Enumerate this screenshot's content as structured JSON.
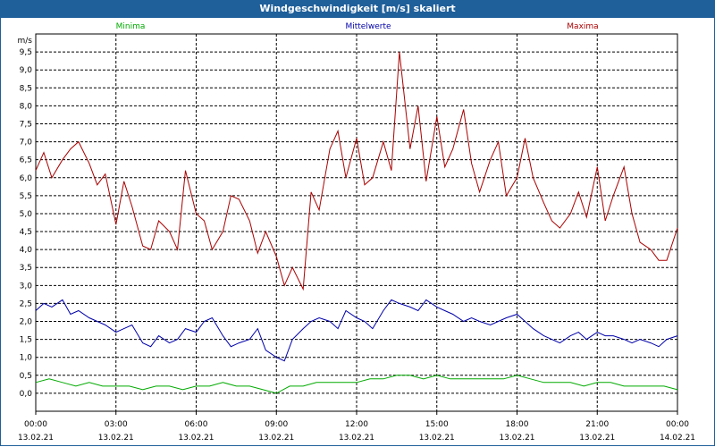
{
  "window_title": "Windgeschwindigkeit [m/s] skaliert",
  "chart_data": {
    "type": "line",
    "title": "Windgeschwindigkeit [m/s] skaliert",
    "ylabel": "m/s",
    "ylim": [
      -0.5,
      10.0
    ],
    "yticks": [
      "0,0",
      "0,5",
      "1,0",
      "1,5",
      "2,0",
      "2,5",
      "3,0",
      "3,5",
      "4,0",
      "4,5",
      "5,0",
      "5,5",
      "6,0",
      "6,5",
      "7,0",
      "7,5",
      "8,0",
      "8,5",
      "9,0",
      "9,5"
    ],
    "x_ticks": [
      {
        "time": "00:00",
        "date": "13.02.21"
      },
      {
        "time": "03:00",
        "date": "13.02.21"
      },
      {
        "time": "06:00",
        "date": "13.02.21"
      },
      {
        "time": "09:00",
        "date": "13.02.21"
      },
      {
        "time": "12:00",
        "date": "13.02.21"
      },
      {
        "time": "15:00",
        "date": "13.02.21"
      },
      {
        "time": "18:00",
        "date": "13.02.21"
      },
      {
        "time": "21:00",
        "date": "13.02.21"
      },
      {
        "time": "00:00",
        "date": "14.02.21"
      }
    ],
    "x_hours": [
      0,
      24
    ],
    "grid": true,
    "series": [
      {
        "name": "Minima",
        "color": "#00aa00",
        "points": [
          [
            0,
            0.3
          ],
          [
            0.5,
            0.4
          ],
          [
            1,
            0.3
          ],
          [
            1.5,
            0.2
          ],
          [
            2,
            0.3
          ],
          [
            2.5,
            0.2
          ],
          [
            3,
            0.2
          ],
          [
            3.5,
            0.2
          ],
          [
            4,
            0.1
          ],
          [
            4.5,
            0.2
          ],
          [
            5,
            0.2
          ],
          [
            5.5,
            0.1
          ],
          [
            6,
            0.2
          ],
          [
            6.5,
            0.2
          ],
          [
            7,
            0.3
          ],
          [
            7.5,
            0.2
          ],
          [
            8,
            0.2
          ],
          [
            8.5,
            0.1
          ],
          [
            9,
            0.0
          ],
          [
            9.5,
            0.2
          ],
          [
            10,
            0.2
          ],
          [
            10.5,
            0.3
          ],
          [
            11,
            0.3
          ],
          [
            11.5,
            0.3
          ],
          [
            12,
            0.3
          ],
          [
            12.5,
            0.4
          ],
          [
            13,
            0.4
          ],
          [
            13.5,
            0.5
          ],
          [
            14,
            0.5
          ],
          [
            14.5,
            0.4
          ],
          [
            15,
            0.5
          ],
          [
            15.5,
            0.4
          ],
          [
            16,
            0.4
          ],
          [
            16.5,
            0.4
          ],
          [
            17,
            0.4
          ],
          [
            17.5,
            0.4
          ],
          [
            18,
            0.5
          ],
          [
            18.5,
            0.4
          ],
          [
            19,
            0.3
          ],
          [
            19.5,
            0.3
          ],
          [
            20,
            0.3
          ],
          [
            20.5,
            0.2
          ],
          [
            21,
            0.3
          ],
          [
            21.5,
            0.3
          ],
          [
            22,
            0.2
          ],
          [
            22.5,
            0.2
          ],
          [
            23,
            0.2
          ],
          [
            23.5,
            0.2
          ],
          [
            24,
            0.1
          ]
        ]
      },
      {
        "name": "Mittelwerte",
        "color": "#0000aa",
        "points": [
          [
            0,
            2.3
          ],
          [
            0.3,
            2.5
          ],
          [
            0.6,
            2.4
          ],
          [
            1,
            2.6
          ],
          [
            1.3,
            2.2
          ],
          [
            1.6,
            2.3
          ],
          [
            2,
            2.1
          ],
          [
            2.3,
            2.0
          ],
          [
            2.6,
            1.9
          ],
          [
            3,
            1.7
          ],
          [
            3.3,
            1.8
          ],
          [
            3.6,
            1.9
          ],
          [
            4,
            1.4
          ],
          [
            4.3,
            1.3
          ],
          [
            4.6,
            1.6
          ],
          [
            5,
            1.4
          ],
          [
            5.3,
            1.5
          ],
          [
            5.6,
            1.8
          ],
          [
            6,
            1.7
          ],
          [
            6.3,
            2.0
          ],
          [
            6.6,
            2.1
          ],
          [
            7,
            1.6
          ],
          [
            7.3,
            1.3
          ],
          [
            7.6,
            1.4
          ],
          [
            8,
            1.5
          ],
          [
            8.3,
            1.8
          ],
          [
            8.6,
            1.2
          ],
          [
            9,
            1.0
          ],
          [
            9.3,
            0.9
          ],
          [
            9.6,
            1.5
          ],
          [
            10,
            1.8
          ],
          [
            10.3,
            2.0
          ],
          [
            10.6,
            2.1
          ],
          [
            11,
            2.0
          ],
          [
            11.3,
            1.8
          ],
          [
            11.6,
            2.3
          ],
          [
            12,
            2.1
          ],
          [
            12.3,
            2.0
          ],
          [
            12.6,
            1.8
          ],
          [
            13,
            2.3
          ],
          [
            13.3,
            2.6
          ],
          [
            13.6,
            2.5
          ],
          [
            14,
            2.4
          ],
          [
            14.3,
            2.3
          ],
          [
            14.6,
            2.6
          ],
          [
            15,
            2.4
          ],
          [
            15.3,
            2.3
          ],
          [
            15.6,
            2.2
          ],
          [
            16,
            2.0
          ],
          [
            16.3,
            2.1
          ],
          [
            16.6,
            2.0
          ],
          [
            17,
            1.9
          ],
          [
            17.3,
            2.0
          ],
          [
            17.6,
            2.1
          ],
          [
            18,
            2.2
          ],
          [
            18.3,
            2.0
          ],
          [
            18.6,
            1.8
          ],
          [
            19,
            1.6
          ],
          [
            19.3,
            1.5
          ],
          [
            19.6,
            1.4
          ],
          [
            20,
            1.6
          ],
          [
            20.3,
            1.7
          ],
          [
            20.6,
            1.5
          ],
          [
            21,
            1.7
          ],
          [
            21.3,
            1.6
          ],
          [
            21.6,
            1.6
          ],
          [
            22,
            1.5
          ],
          [
            22.3,
            1.4
          ],
          [
            22.6,
            1.5
          ],
          [
            23,
            1.4
          ],
          [
            23.3,
            1.3
          ],
          [
            23.6,
            1.5
          ],
          [
            24,
            1.6
          ]
        ]
      },
      {
        "name": "Maxima",
        "color": "#aa0000",
        "points": [
          [
            0,
            6.2
          ],
          [
            0.3,
            6.7
          ],
          [
            0.6,
            6.0
          ],
          [
            1,
            6.5
          ],
          [
            1.3,
            6.8
          ],
          [
            1.6,
            7.0
          ],
          [
            2,
            6.4
          ],
          [
            2.3,
            5.8
          ],
          [
            2.6,
            6.1
          ],
          [
            3,
            4.7
          ],
          [
            3.3,
            5.9
          ],
          [
            3.6,
            5.2
          ],
          [
            4,
            4.1
          ],
          [
            4.3,
            4.0
          ],
          [
            4.6,
            4.8
          ],
          [
            5,
            4.5
          ],
          [
            5.3,
            4.0
          ],
          [
            5.6,
            6.2
          ],
          [
            6,
            5.0
          ],
          [
            6.3,
            4.8
          ],
          [
            6.6,
            4.0
          ],
          [
            7,
            4.5
          ],
          [
            7.3,
            5.5
          ],
          [
            7.6,
            5.4
          ],
          [
            8,
            4.8
          ],
          [
            8.3,
            3.9
          ],
          [
            8.6,
            4.5
          ],
          [
            9,
            3.8
          ],
          [
            9.3,
            3.0
          ],
          [
            9.6,
            3.5
          ],
          [
            10,
            2.9
          ],
          [
            10.3,
            5.6
          ],
          [
            10.6,
            5.1
          ],
          [
            11,
            6.8
          ],
          [
            11.3,
            7.3
          ],
          [
            11.6,
            6.0
          ],
          [
            12,
            7.1
          ],
          [
            12.3,
            5.8
          ],
          [
            12.6,
            6.0
          ],
          [
            13,
            7.0
          ],
          [
            13.3,
            6.2
          ],
          [
            13.6,
            9.5
          ],
          [
            14,
            6.8
          ],
          [
            14.3,
            8.0
          ],
          [
            14.6,
            5.9
          ],
          [
            15,
            7.7
          ],
          [
            15.3,
            6.3
          ],
          [
            15.6,
            6.8
          ],
          [
            16,
            7.9
          ],
          [
            16.3,
            6.4
          ],
          [
            16.6,
            5.6
          ],
          [
            17,
            6.5
          ],
          [
            17.3,
            7.0
          ],
          [
            17.6,
            5.5
          ],
          [
            18,
            6.0
          ],
          [
            18.3,
            7.1
          ],
          [
            18.6,
            6.0
          ],
          [
            19,
            5.3
          ],
          [
            19.3,
            4.8
          ],
          [
            19.6,
            4.6
          ],
          [
            20,
            5.0
          ],
          [
            20.3,
            5.6
          ],
          [
            20.6,
            4.9
          ],
          [
            21,
            6.3
          ],
          [
            21.3,
            4.8
          ],
          [
            21.6,
            5.5
          ],
          [
            22,
            6.3
          ],
          [
            22.3,
            5.0
          ],
          [
            22.6,
            4.2
          ],
          [
            23,
            4.0
          ],
          [
            23.3,
            3.7
          ],
          [
            23.6,
            3.7
          ],
          [
            24,
            4.6
          ]
        ]
      }
    ]
  }
}
